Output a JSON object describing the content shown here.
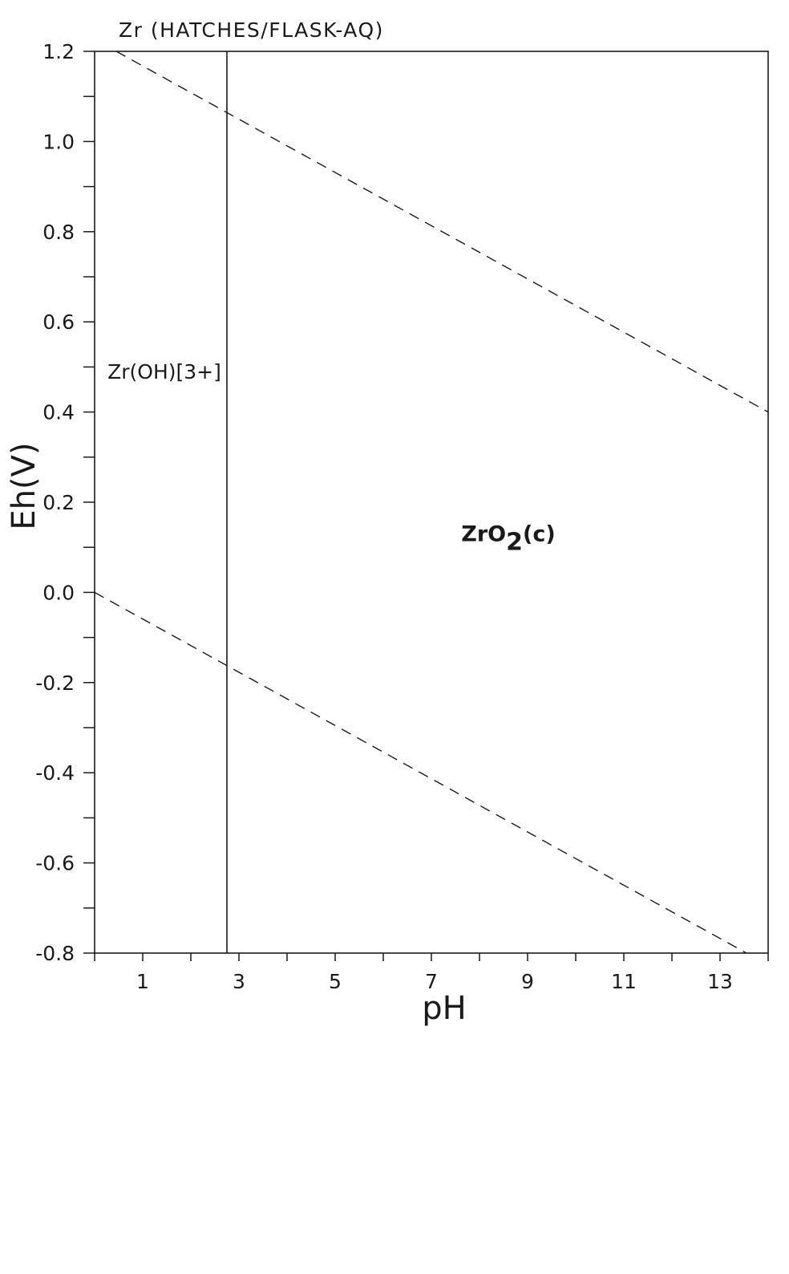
{
  "chart_data": {
    "type": "line",
    "title": "Zr (HATCHES/FLASK-AQ)",
    "xlabel": "pH",
    "ylabel": "Eh(V)",
    "xlim": [
      0,
      14
    ],
    "ylim": [
      -0.8,
      1.2
    ],
    "x_ticks": [
      1,
      3,
      5,
      7,
      9,
      11,
      13
    ],
    "x_tick_labels": [
      "1",
      "3",
      "5",
      "7",
      "9",
      "11",
      "13"
    ],
    "x_minor_step": 1,
    "y_ticks": [
      1.2,
      1.0,
      0.8,
      0.6,
      0.4,
      0.2,
      0.0,
      -0.2,
      -0.4,
      -0.6,
      -0.8
    ],
    "y_tick_labels": [
      "1.2",
      "1.0",
      "0.8",
      "0.6",
      "0.4",
      "0.2",
      "0.0",
      "-0.2",
      "-0.4",
      "-0.6",
      "-0.8"
    ],
    "y_minor_step": 0.1,
    "grid": false,
    "series": [
      {
        "style": "dashed",
        "color": "#1a1a1a",
        "x": [
          0.45,
          14.0
        ],
        "y": [
          1.2,
          0.4
        ]
      },
      {
        "style": "dashed",
        "color": "#1a1a1a",
        "x": [
          0.0,
          13.55
        ],
        "y": [
          0.0,
          -0.8
        ]
      },
      {
        "style": "solid",
        "color": "#1a1a1a",
        "x": [
          2.75,
          2.75
        ],
        "y": [
          -0.8,
          1.2
        ]
      }
    ],
    "regions": [
      {
        "label": "Zr(OH)[3+]",
        "x": 1.45,
        "y": 0.49,
        "weight": "normal"
      },
      {
        "label_main": "ZrO",
        "label_sub": "2",
        "label_tail": "(c)",
        "x": 8.6,
        "y": 0.13,
        "weight": "bold"
      }
    ]
  }
}
